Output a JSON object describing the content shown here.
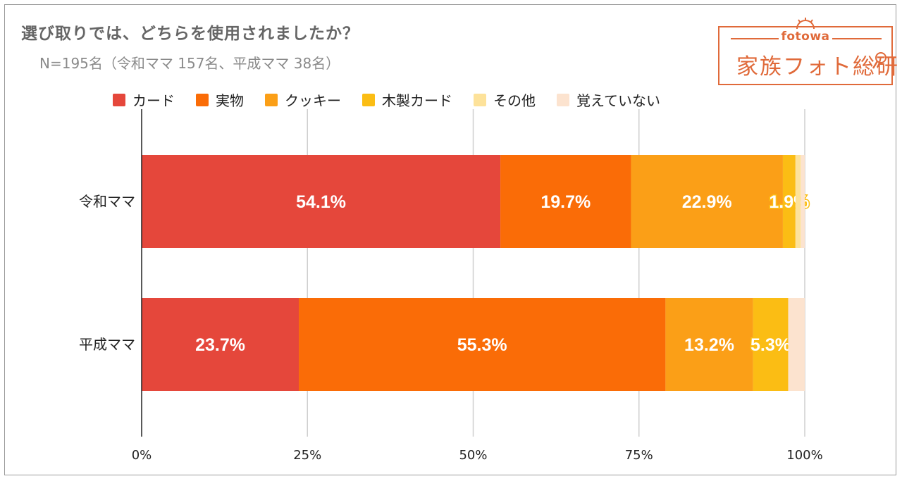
{
  "chart_data": {
    "type": "bar",
    "orientation": "horizontal",
    "stacked": true,
    "title": "選び取りでは、どちらを使用されましたか？",
    "subtitle": "N=195名（令和ママ 157名、平成ママ 38名）",
    "categories": [
      "令和ママ",
      "平成ママ"
    ],
    "series": [
      {
        "name": "カード",
        "color": "#e5473b",
        "values": [
          54.1,
          23.7
        ],
        "labels": [
          "54.1%",
          "23.7%"
        ]
      },
      {
        "name": "実物",
        "color": "#fa6c07",
        "values": [
          19.7,
          55.3
        ],
        "labels": [
          "19.7%",
          "55.3%"
        ]
      },
      {
        "name": "クッキー",
        "color": "#fb9f17",
        "values": [
          22.9,
          13.2
        ],
        "labels": [
          "22.9%",
          "13.2%"
        ]
      },
      {
        "name": "木製カード",
        "color": "#fbbd14",
        "values": [
          1.9,
          5.3
        ],
        "labels": [
          "1.9%",
          "5.3%"
        ]
      },
      {
        "name": "その他",
        "color": "#fde29a",
        "values": [
          0.8,
          0.0
        ],
        "labels": [
          "",
          ""
        ]
      },
      {
        "name": "覚えていない",
        "color": "#fce3cf",
        "values": [
          0.6,
          2.5
        ],
        "labels": [
          "",
          ""
        ]
      }
    ],
    "x_ticks": [
      "0%",
      "25%",
      "50%",
      "75%",
      "100%"
    ],
    "xlim": [
      0,
      100
    ],
    "grid": true,
    "legend": "top"
  },
  "logo": {
    "small_text": "fotowa",
    "big_text": "家族フォト総研"
  }
}
